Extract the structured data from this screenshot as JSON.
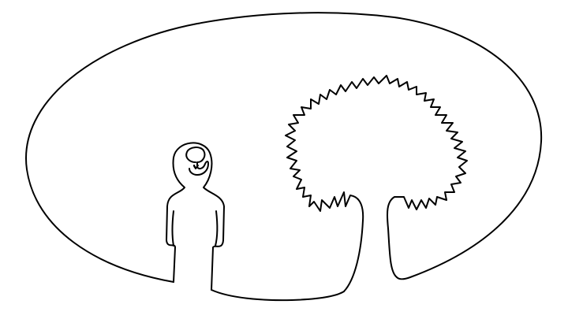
{
  "illustration": {
    "style": "single-line drawing",
    "line_color": "#000000",
    "background_color": "#ffffff",
    "elements": [
      {
        "name": "oval-frame",
        "description_icon": "outline-oval-icon"
      },
      {
        "name": "person-figure",
        "description_icon": "person-silhouette-icon"
      },
      {
        "name": "head-tree-symbol",
        "description_icon": "small-tree-icon"
      },
      {
        "name": "tree",
        "description_icon": "tree-icon"
      }
    ]
  }
}
